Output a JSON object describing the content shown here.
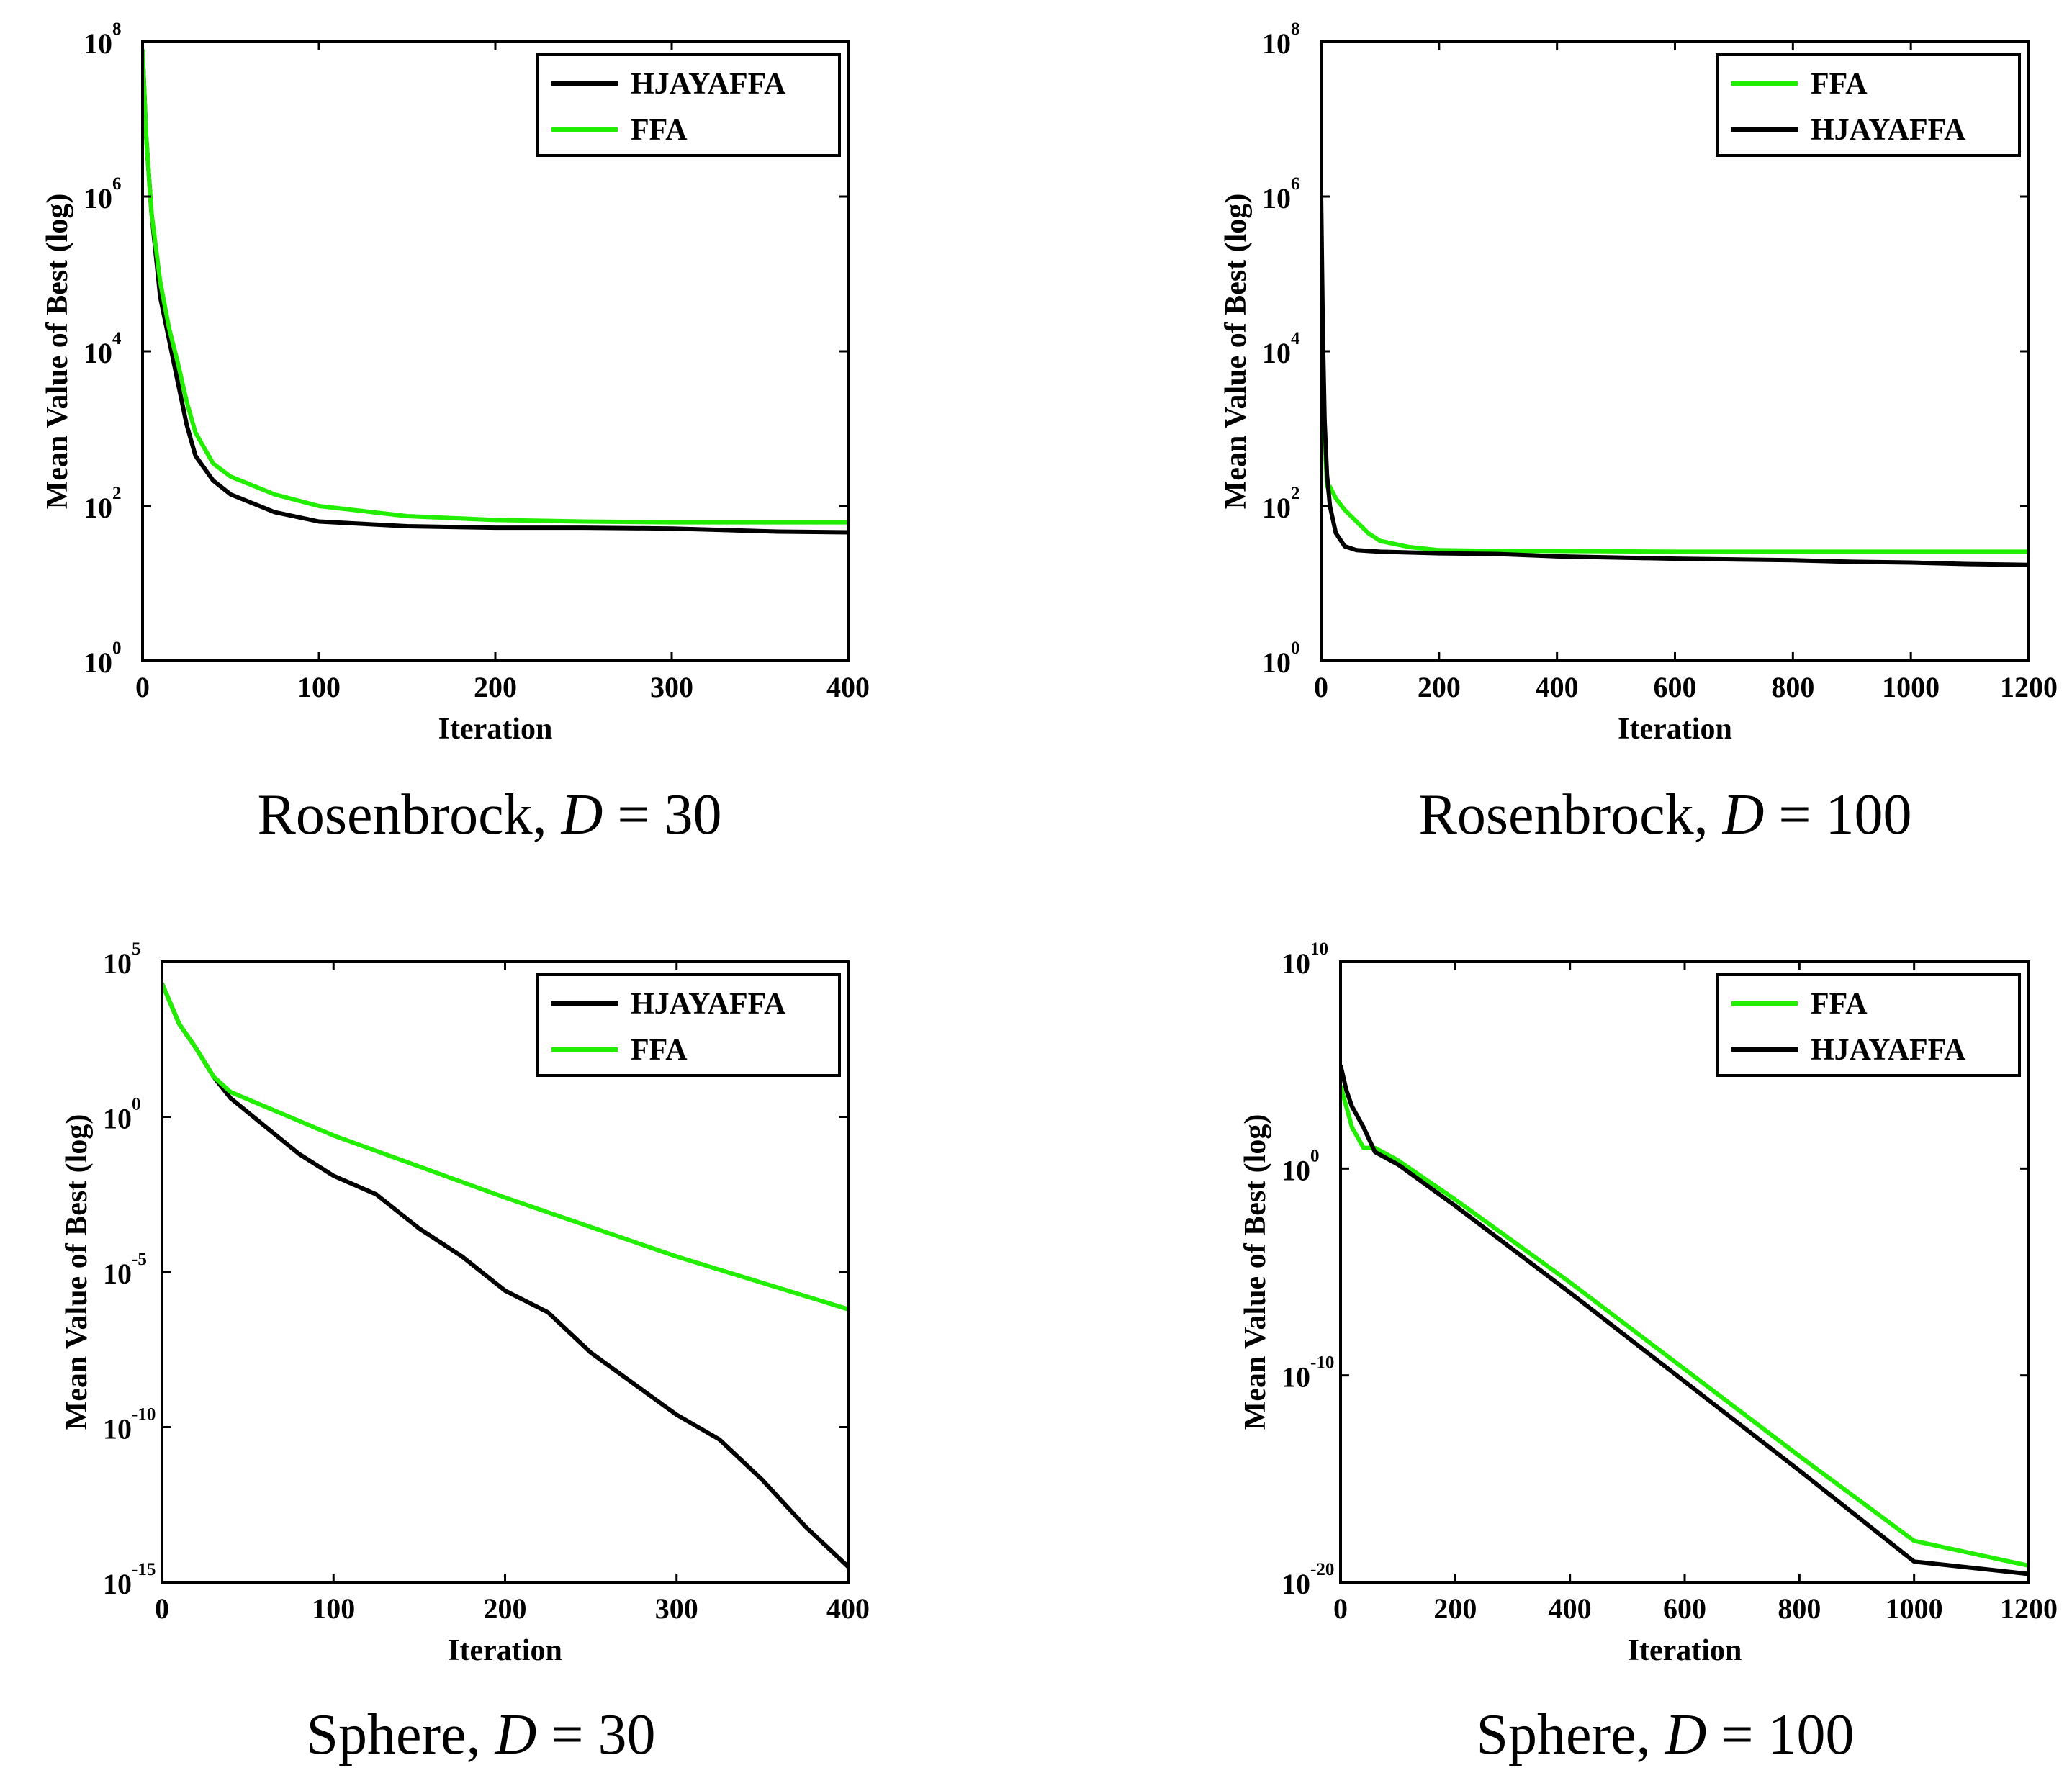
{
  "chart_data": [
    {
      "type": "line",
      "caption": "Rosenbrock, ",
      "caption_var": "D",
      "caption_val": " = 30",
      "xlabel": "Iteration",
      "ylabel": "Mean Value of Best (log)",
      "yscale": "log",
      "xlim": [
        0,
        400
      ],
      "xticks": [
        0,
        100,
        200,
        300,
        400
      ],
      "ylim_exp": [
        0,
        8
      ],
      "yticks_exp": [
        0,
        2,
        4,
        6,
        8
      ],
      "legend_position": "top-right",
      "series": [
        {
          "name": "HJAYAFFA",
          "color": "#000000",
          "x": [
            0,
            2,
            5,
            10,
            15,
            20,
            25,
            30,
            40,
            50,
            75,
            100,
            150,
            200,
            250,
            300,
            360,
            400
          ],
          "log10y": [
            7.9,
            6.8,
            5.8,
            4.7,
            4.15,
            3.6,
            3.05,
            2.65,
            2.33,
            2.15,
            1.92,
            1.8,
            1.74,
            1.72,
            1.72,
            1.71,
            1.67,
            1.66
          ]
        },
        {
          "name": "FFA",
          "color": "#22ee00",
          "x": [
            0,
            2,
            5,
            10,
            15,
            20,
            25,
            30,
            40,
            50,
            75,
            100,
            150,
            200,
            250,
            300,
            360,
            400
          ],
          "log10y": [
            7.9,
            6.8,
            5.8,
            4.9,
            4.3,
            3.85,
            3.35,
            2.95,
            2.55,
            2.38,
            2.15,
            2.0,
            1.87,
            1.82,
            1.8,
            1.79,
            1.79,
            1.79
          ]
        }
      ]
    },
    {
      "type": "line",
      "caption": "Rosenbrock, ",
      "caption_var": "D",
      "caption_val": " = 100",
      "xlabel": "Iteration",
      "ylabel": "Mean Value of Best (log)",
      "yscale": "log",
      "xlim": [
        0,
        1200
      ],
      "xticks": [
        0,
        200,
        400,
        600,
        800,
        1000,
        1200
      ],
      "ylim_exp": [
        0,
        8
      ],
      "yticks_exp": [
        0,
        2,
        4,
        6,
        8
      ],
      "legend_position": "top-right",
      "series": [
        {
          "name": "FFA",
          "color": "#22ee00",
          "x": [
            0,
            3,
            6,
            10,
            15,
            25,
            40,
            60,
            80,
            100,
            150,
            200,
            300,
            400,
            600,
            800,
            1000,
            1200
          ],
          "log10y": [
            4.8,
            3.8,
            2.9,
            2.25,
            2.25,
            2.1,
            1.95,
            1.8,
            1.65,
            1.55,
            1.47,
            1.43,
            1.42,
            1.42,
            1.41,
            1.41,
            1.41,
            1.41
          ]
        },
        {
          "name": "HJAYAFFA",
          "color": "#000000",
          "x": [
            0,
            3,
            6,
            10,
            15,
            25,
            40,
            60,
            100,
            200,
            300,
            400,
            600,
            800,
            900,
            1000,
            1100,
            1200
          ],
          "log10y": [
            6.0,
            4.2,
            3.1,
            2.4,
            2.0,
            1.65,
            1.48,
            1.43,
            1.41,
            1.39,
            1.38,
            1.35,
            1.32,
            1.3,
            1.28,
            1.27,
            1.25,
            1.24
          ]
        }
      ]
    },
    {
      "type": "line",
      "caption": "Sphere, ",
      "caption_var": "D",
      "caption_val": " = 30",
      "xlabel": "Iteration",
      "ylabel": "Mean Value of Best (log)",
      "yscale": "log",
      "xlim": [
        0,
        400
      ],
      "xticks": [
        0,
        100,
        200,
        300,
        400
      ],
      "ylim_exp": [
        -15,
        5
      ],
      "yticks_exp": [
        -15,
        -10,
        -5,
        0,
        5
      ],
      "legend_position": "top-right",
      "series": [
        {
          "name": "HJAYAFFA",
          "color": "#000000",
          "x": [
            0,
            10,
            20,
            30,
            40,
            60,
            80,
            100,
            125,
            150,
            175,
            200,
            225,
            250,
            275,
            300,
            325,
            350,
            375,
            400
          ],
          "log10y": [
            4.3,
            3.0,
            2.2,
            1.3,
            0.6,
            -0.3,
            -1.2,
            -1.9,
            -2.5,
            -3.6,
            -4.5,
            -5.6,
            -6.3,
            -7.6,
            -8.6,
            -9.6,
            -10.4,
            -11.7,
            -13.2,
            -14.5
          ]
        },
        {
          "name": "FFA",
          "color": "#22ee00",
          "x": [
            0,
            10,
            20,
            30,
            40,
            100,
            200,
            300,
            400
          ],
          "log10y": [
            4.3,
            3.0,
            2.2,
            1.3,
            0.8,
            -0.6,
            -2.6,
            -4.5,
            -6.2
          ]
        }
      ]
    },
    {
      "type": "line",
      "caption": "Sphere, ",
      "caption_var": "D",
      "caption_val": " = 100",
      "xlabel": "Iteration",
      "ylabel": "Mean Value of Best (log)",
      "yscale": "log",
      "xlim": [
        0,
        1200
      ],
      "xticks": [
        0,
        200,
        400,
        600,
        800,
        1000,
        1200
      ],
      "ylim_exp": [
        -20,
        10
      ],
      "yticks_exp": [
        -20,
        -10,
        0,
        10
      ],
      "legend_position": "top-right",
      "series": [
        {
          "name": "FFA",
          "color": "#22ee00",
          "x": [
            0,
            10,
            20,
            40,
            60,
            100,
            200,
            400,
            600,
            800,
            1000,
            1200
          ],
          "log10y": [
            4.0,
            3.0,
            2.0,
            1.0,
            1.0,
            0.4,
            -1.5,
            -5.5,
            -9.7,
            -13.9,
            -18.0,
            -19.2
          ]
        },
        {
          "name": "HJAYAFFA",
          "color": "#000000",
          "x": [
            0,
            10,
            20,
            40,
            60,
            100,
            200,
            400,
            600,
            800,
            1000,
            1200
          ],
          "log10y": [
            5.0,
            3.8,
            3.0,
            2.0,
            0.8,
            0.2,
            -1.8,
            -6.0,
            -10.3,
            -14.6,
            -19.0,
            -19.6
          ]
        }
      ]
    }
  ]
}
